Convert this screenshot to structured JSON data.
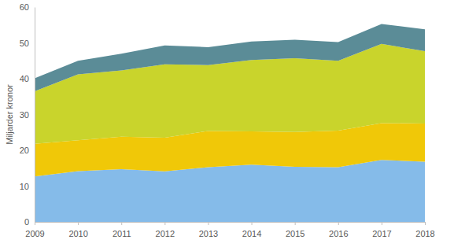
{
  "chart_data": {
    "type": "area",
    "stacked": true,
    "legend": false,
    "grid": false,
    "y_label": "Miljarder kronor",
    "x": [
      2009,
      2010,
      2011,
      2012,
      2013,
      2014,
      2015,
      2016,
      2017,
      2018
    ],
    "xlim": [
      2009,
      2018
    ],
    "xticks": [
      2009,
      2010,
      2011,
      2012,
      2013,
      2014,
      2015,
      2016,
      2017,
      2018
    ],
    "ylim": [
      0,
      60
    ],
    "yticks": [
      0,
      10,
      20,
      30,
      40,
      50,
      60
    ],
    "series": [
      {
        "color": "#85bbe9",
        "values": [
          12.7,
          14.2,
          14.7,
          14.1,
          15.3,
          16.0,
          15.4,
          15.3,
          17.3,
          16.8
        ]
      },
      {
        "color": "#f0c808",
        "values": [
          9.1,
          8.6,
          9.1,
          9.4,
          10.1,
          9.3,
          9.7,
          10.2,
          10.3,
          10.7
        ]
      },
      {
        "color": "#c9d42c",
        "values": [
          14.7,
          18.4,
          18.5,
          20.5,
          18.4,
          19.9,
          20.6,
          19.5,
          22.1,
          20.2
        ]
      },
      {
        "color": "#5b8c97",
        "values": [
          3.6,
          3.8,
          4.7,
          5.3,
          5.0,
          5.2,
          5.2,
          5.2,
          5.6,
          6.1
        ]
      }
    ]
  }
}
